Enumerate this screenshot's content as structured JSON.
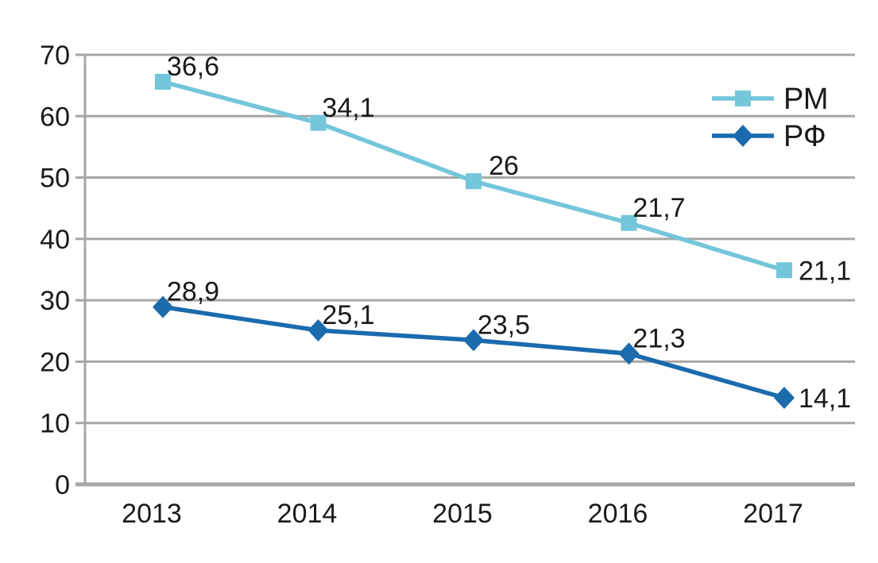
{
  "chart_data": {
    "type": "line",
    "title": "",
    "xlabel": "",
    "ylabel": "",
    "categories": [
      "2013",
      "2014",
      "2015",
      "2016",
      "2017"
    ],
    "series": [
      {
        "name": "РМ",
        "color": "#74C6DA",
        "marker": "square",
        "values": [
          36.6,
          34.1,
          26,
          21.7,
          21.1
        ],
        "data_labels": [
          "36,6",
          "34,1",
          "26",
          "21,7",
          "21,1"
        ],
        "plotted_values": [
          65.6,
          58.9,
          49.4,
          42.6,
          34.9
        ]
      },
      {
        "name": "РФ",
        "color": "#1B6BAD",
        "marker": "diamond",
        "values": [
          28.9,
          25.1,
          23.5,
          21.3,
          14.1
        ],
        "data_labels": [
          "28,9",
          "25,1",
          "23,5",
          "21,3",
          "14,1"
        ],
        "plotted_values": [
          28.9,
          25.1,
          23.5,
          21.3,
          14.1
        ]
      }
    ],
    "ylim": [
      0,
      70
    ],
    "yticks": [
      0,
      10,
      20,
      30,
      40,
      50,
      60,
      70
    ],
    "grid": "horizontal",
    "legend": {
      "position": "top-right",
      "entries": [
        "РМ",
        "РФ"
      ]
    }
  },
  "style_colors": {
    "background": "#FFFFFF",
    "grid": "#A6A6A6",
    "axis": "#A6A6A6",
    "text": "#1A1A1A"
  }
}
